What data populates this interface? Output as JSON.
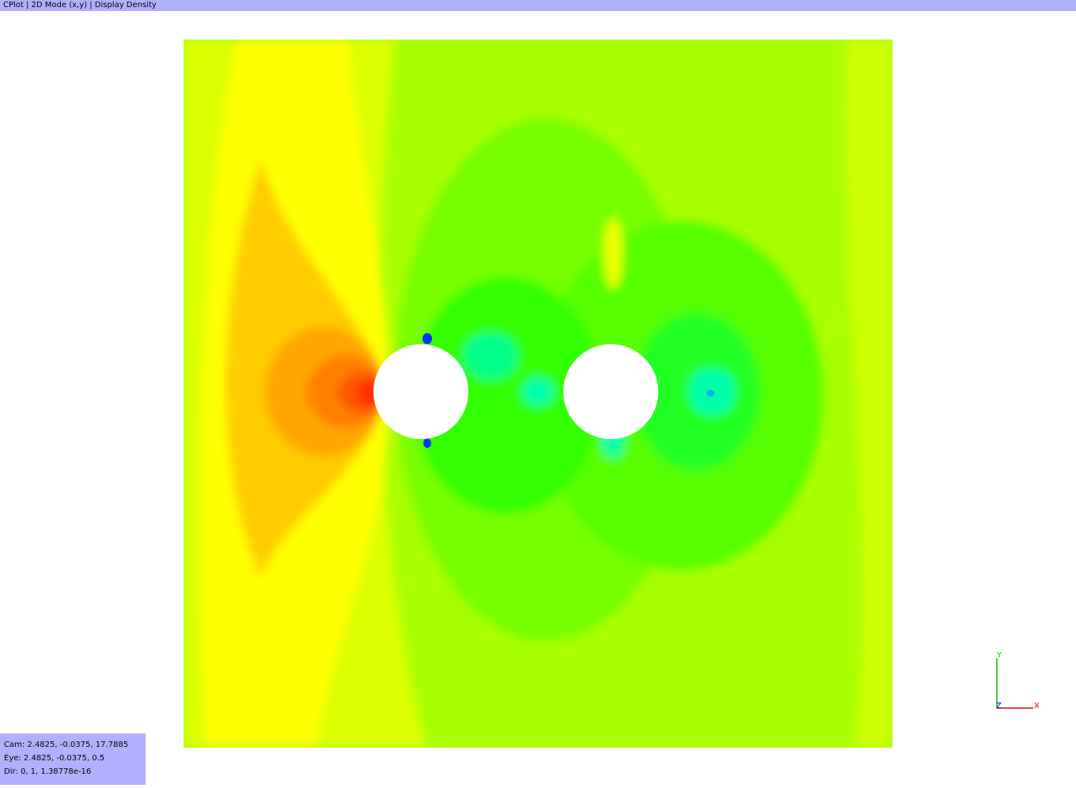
{
  "window": {
    "title": "CPlot | 2D Mode (x,y) | Display Density"
  },
  "info": {
    "lines": [
      "Cam: 2.4825, -0.0375, 17.7885",
      "Eye: 2.4825, -0.0375, 0.5",
      "Dir: 0, 1, 1.38778e-16"
    ]
  },
  "axes": {
    "x": "X",
    "y": "Y",
    "z": "Z"
  }
}
